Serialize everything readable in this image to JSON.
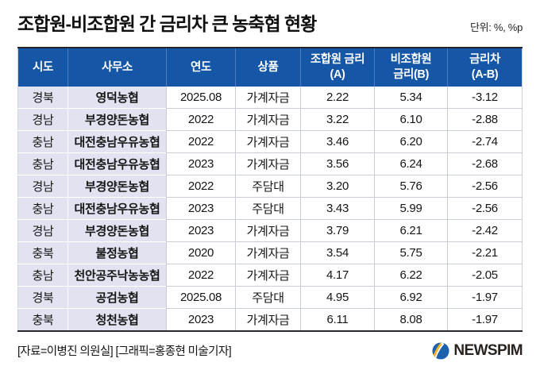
{
  "title": "조합원-비조합원 간 금리차 큰 농축협 현황",
  "unit": "단위: %, %p",
  "table": {
    "column_keys": [
      "region",
      "office",
      "year",
      "product",
      "member-rate",
      "nonmember-rate",
      "rate-gap"
    ],
    "headers": [
      {
        "lines": [
          "시도"
        ]
      },
      {
        "lines": [
          "사무소"
        ]
      },
      {
        "lines": [
          "연도"
        ]
      },
      {
        "lines": [
          "상품"
        ]
      },
      {
        "lines": [
          "조합원 금리",
          "(A)"
        ]
      },
      {
        "lines": [
          "비조합원",
          "금리(B)"
        ]
      },
      {
        "lines": [
          "금리차",
          "(A-B)"
        ]
      }
    ]
  },
  "chart_data": {
    "type": "table",
    "title": "조합원-비조합원 간 금리차 큰 농축협 현황",
    "unit": "%, %p",
    "columns": [
      "시도",
      "사무소",
      "연도",
      "상품",
      "조합원 금리(A)",
      "비조합원 금리(B)",
      "금리차(A-B)"
    ],
    "rows": [
      [
        "경북",
        "영덕농협",
        "2025.08",
        "가계자금",
        "2.22",
        "5.34",
        "-3.12"
      ],
      [
        "경남",
        "부경양돈농협",
        "2022",
        "가계자금",
        "3.22",
        "6.10",
        "-2.88"
      ],
      [
        "충남",
        "대전충남우유농협",
        "2022",
        "가계자금",
        "3.46",
        "6.20",
        "-2.74"
      ],
      [
        "충남",
        "대전충남우유농협",
        "2023",
        "가계자금",
        "3.56",
        "6.24",
        "-2.68"
      ],
      [
        "경남",
        "부경양돈농협",
        "2022",
        "주담대",
        "3.20",
        "5.76",
        "-2.56"
      ],
      [
        "충남",
        "대전충남우유농협",
        "2023",
        "주담대",
        "3.43",
        "5.99",
        "-2.56"
      ],
      [
        "경남",
        "부경양돈농협",
        "2023",
        "가계자금",
        "3.79",
        "6.21",
        "-2.42"
      ],
      [
        "충북",
        "불정농협",
        "2020",
        "가계자금",
        "3.54",
        "5.75",
        "-2.21"
      ],
      [
        "충남",
        "천안공주낙농농협",
        "2022",
        "가계자금",
        "4.17",
        "6.22",
        "-2.05"
      ],
      [
        "경북",
        "공검농협",
        "2025.08",
        "주담대",
        "4.95",
        "6.92",
        "-1.97"
      ],
      [
        "충북",
        "청천농협",
        "2023",
        "가계자금",
        "6.11",
        "8.08",
        "-1.97"
      ]
    ]
  },
  "footer": {
    "credits": "[자료=이병진 의원실] [그래픽=홍종현 미술기자]",
    "logo_text": "NEWSPIM"
  },
  "colors": {
    "header_bg": "#1556a6",
    "light_column_bg": "#e1e3f0",
    "grid_line": "#c9cdd8",
    "logo_blue": "#1b61ad",
    "logo_orange": "#f59a1f",
    "logo_yellow": "#ffd21e"
  }
}
